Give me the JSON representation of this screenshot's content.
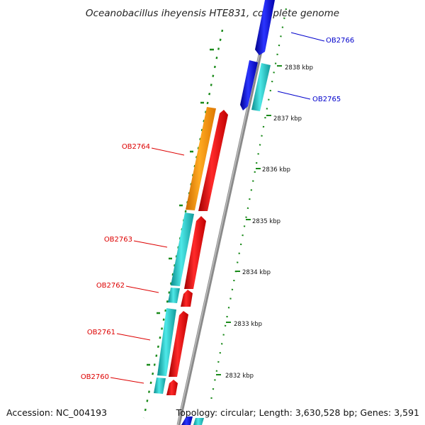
{
  "title": "Oceanobacillus iheyensis HTE831, complete genome",
  "footer": {
    "accession": "Accession: NC_004193",
    "topology": "Topology: circular; Length: 3,630,528 bp; Genes: 3,591"
  },
  "ticks": [
    "2838 kbp",
    "2837 kbp",
    "2836 kbp",
    "2835 kbp",
    "2834 kbp",
    "2833 kbp",
    "2832 kbp"
  ],
  "genes": [
    {
      "name": "OB2766",
      "color": "#0000cc"
    },
    {
      "name": "OB2765",
      "color": "#0000cc"
    },
    {
      "name": "OB2764",
      "color": "#dd0000"
    },
    {
      "name": "OB2763",
      "color": "#dd0000"
    },
    {
      "name": "OB2762",
      "color": "#dd0000"
    },
    {
      "name": "OB2761",
      "color": "#dd0000"
    },
    {
      "name": "OB2760",
      "color": "#dd0000"
    }
  ],
  "colors": {
    "backbone": "#8a8a8a",
    "forward_strand": "#0a12ee",
    "reverse_strand": "#ee1111",
    "rna_feature": "#22cccc",
    "cds_feature": "#ff9900",
    "gc_marks": "#1a8a1a"
  }
}
